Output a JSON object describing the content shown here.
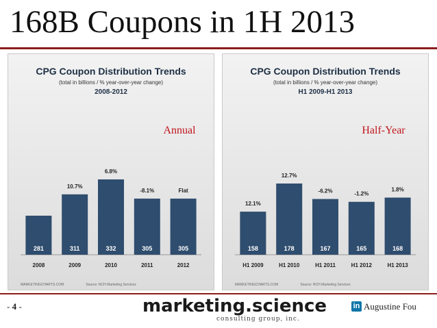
{
  "slide": {
    "title": "168B Coupons in 1H 2013",
    "page_dash_left": "- ",
    "page_number": "4",
    "page_dash_right": " -",
    "logo_main": "marketing.science",
    "logo_sub": "consulting group, inc.",
    "author_icon": "in",
    "author": "Augustine Fou",
    "colors": {
      "bar": "#2f4d6e",
      "tag": "#c0141c",
      "rule": "#8b1c1c"
    }
  },
  "chart_data": [
    {
      "type": "bar",
      "title": "CPG Coupon Distribution Trends",
      "subtitle": "(total in billions / % year-over-year change)",
      "period": "2008-2012",
      "tag": "Annual",
      "categories": [
        "2008",
        "2009",
        "2010",
        "2011",
        "2012"
      ],
      "values": [
        281,
        311,
        332,
        305,
        305
      ],
      "changes": [
        "",
        "10.7%",
        "6.8%",
        "-8.1%",
        "Flat"
      ],
      "source_left": "MARKETINGCHARTS.COM",
      "source": "Source: NCH Marketing Services"
    },
    {
      "type": "bar",
      "title": "CPG Coupon Distribution Trends",
      "subtitle": "(total in billions / % year-over-year change)",
      "period": "H1 2009-H1 2013",
      "tag": "Half-Year",
      "categories": [
        "H1 2009",
        "H1 2010",
        "H1 2011",
        "H1 2012",
        "H1 2013"
      ],
      "values": [
        158,
        178,
        167,
        165,
        168
      ],
      "changes": [
        "12.1%",
        "12.7%",
        "-6.2%",
        "-1.2%",
        "1.8%"
      ],
      "source_left": "MARKETINGCHARTS.COM",
      "source": "Source: NCH Marketing Services"
    }
  ]
}
